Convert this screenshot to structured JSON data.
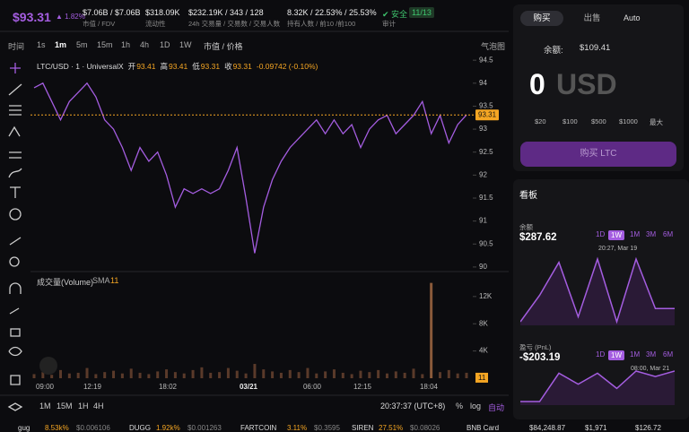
{
  "header": {
    "price": "$93.31",
    "change": "1.82%",
    "stats": [
      {
        "value": "$7.06B / $7.06B",
        "label": "市值 / FDV"
      },
      {
        "value": "$318.09K",
        "label": "流动性"
      },
      {
        "value": "$232.19K / 343 / 128",
        "label": "24h 交易量 / 交易数 / 交易人数"
      },
      {
        "value": "8.32K / 22.53% / 25.53%",
        "label": "持有人数 / 前10 /前100"
      }
    ],
    "audit": {
      "status": "安全",
      "score": "11/13",
      "label": "审计"
    }
  },
  "toolbar": {
    "intervals": [
      "时间",
      "1s",
      "1m",
      "5m",
      "15m",
      "1h",
      "4h",
      "1D",
      "1W"
    ],
    "mode": "市值 / 价格",
    "bubble": "气泡图"
  },
  "legend": {
    "symbol": "LTC/USD · 1 · UniversalX",
    "open_label": "开",
    "open": "93.41",
    "high_label": "高",
    "high": "93.41",
    "low_label": "低",
    "low": "93.31",
    "close_label": "收",
    "close": "93.31",
    "change": "-0.09742 (-0.10%)"
  },
  "chart_data": {
    "type": "line",
    "color": "#a45de0",
    "values": [
      93.9,
      94.0,
      93.6,
      93.2,
      93.6,
      93.8,
      94.0,
      93.7,
      93.2,
      93.0,
      92.6,
      92.1,
      92.6,
      92.3,
      92.5,
      92.0,
      91.3,
      91.7,
      91.6,
      91.7,
      91.6,
      91.7,
      92.1,
      92.6,
      91.5,
      90.3,
      91.3,
      91.9,
      92.3,
      92.6,
      92.8,
      93.0,
      93.2,
      92.9,
      93.2,
      92.9,
      93.1,
      92.6,
      93.0,
      93.2,
      93.3,
      92.9,
      93.1,
      93.3,
      93.6,
      92.9,
      93.3,
      92.7,
      93.1,
      93.31
    ],
    "ylim": [
      89.92,
      94.64
    ],
    "yticks": [
      90,
      90.5,
      91,
      91.5,
      92,
      92.5,
      93,
      93.5,
      94,
      94.5
    ],
    "last_price": 93.31,
    "x_labels": [
      "09:00",
      "12:19",
      "18:02",
      "03/21",
      "06:00",
      "12:15",
      "18:04"
    ]
  },
  "volume": {
    "title": "成交量(Volume)",
    "sma_label": "SMA",
    "sma": "11",
    "color": "#5a3a2a",
    "values": [
      600,
      900,
      500,
      1200,
      700,
      800,
      1500,
      600,
      900,
      1100,
      700,
      1400,
      800,
      600,
      1000,
      1300,
      900,
      700,
      1200,
      1600,
      800,
      900,
      1500,
      1100,
      700,
      2100,
      1300,
      1000,
      800,
      1200,
      900,
      1500,
      700,
      1000,
      1300,
      800,
      600,
      1100,
      900,
      1200,
      700,
      1000,
      800,
      1400,
      600,
      14000,
      900,
      1200,
      700,
      800
    ],
    "ylim": [
      0,
      15400
    ],
    "yticks": [
      {
        "value": 4000,
        "label": "4K"
      },
      {
        "value": 8000,
        "label": "8K"
      },
      {
        "value": 12000,
        "label": "12K"
      }
    ],
    "sma_value": 11
  },
  "bottom_bar": {
    "ranges": [
      "1M",
      "15M",
      "1H",
      "4H"
    ],
    "clock": "20:37:37 (UTC+8)",
    "percent": "%",
    "log": "log",
    "auto": "自动"
  },
  "trade": {
    "tabs": [
      "购买",
      "出售"
    ],
    "auto": "Auto",
    "balance_label": "余额:",
    "balance": "$109.41",
    "amount": "0",
    "currency": "USD",
    "presets": [
      "$20",
      "$100",
      "$500",
      "$1000",
      "最大"
    ],
    "submit": "购买 LTC"
  },
  "board": {
    "title": "看板",
    "panels": [
      {
        "label": "余额",
        "value": "$287.62",
        "ranges": [
          "1D",
          "1W",
          "1M",
          "3M",
          "6M"
        ],
        "tooltip": "20:27, Mar 19",
        "values": [
          262,
          278,
          298,
          265,
          300,
          262,
          300,
          270,
          270
        ]
      },
      {
        "label": "盈亏 (PnL)",
        "value": "-$203.19",
        "ranges": [
          "1D",
          "1W",
          "1M",
          "3M",
          "6M"
        ],
        "tooltip": "08:00, Mar 21",
        "values": [
          -228,
          -228,
          -202,
          -212,
          -202,
          -216,
          -200,
          -205,
          -200
        ]
      }
    ]
  },
  "ticker": [
    {
      "name": "gug",
      "change": "8.53k%",
      "price": "$0.006106"
    },
    {
      "name": "DUGG",
      "change": "1.92k%",
      "price": "$0.001263"
    },
    {
      "name": "FARTCOIN",
      "change": "3.11%",
      "price": "$0.3595"
    },
    {
      "name": "SIREN",
      "change": "27.51%",
      "price": "$0.08026"
    }
  ],
  "ticker_extra": {
    "bnb": "BNB Card",
    "prices": [
      "$84,248.87",
      "$1,971",
      "$126.72"
    ]
  }
}
